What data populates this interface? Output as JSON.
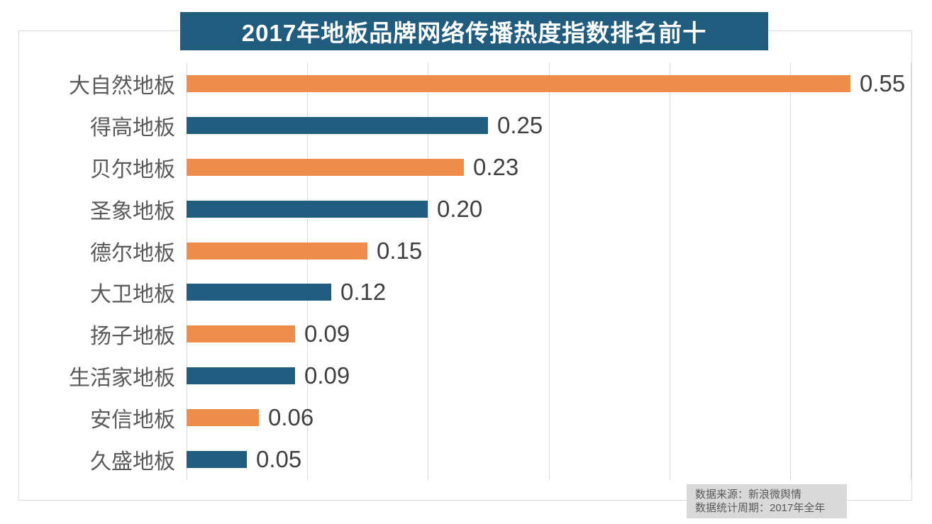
{
  "title": "2017年地板品牌网络传播热度指数排名前十",
  "source_note": {
    "line1": "数据来源：新浪微舆情",
    "line2": "数据统计周期：2017年全年"
  },
  "colors": {
    "title_bg": "#1F5C7D",
    "bar_orange": "#EE8D4A",
    "bar_teal": "#1F5C7D",
    "grid": "#D9D9D9",
    "category_text": "#595959",
    "value_text": "#404040",
    "note_bg": "#D9D9D9",
    "note_text": "#595959"
  },
  "chart_data": {
    "type": "bar",
    "orientation": "horizontal",
    "title": "2017年地板品牌网络传播热度指数排名前十",
    "categories": [
      "大自然地板",
      "得高地板",
      "贝尔地板",
      "圣象地板",
      "德尔地板",
      "大卫地板",
      "扬子地板",
      "生活家地板",
      "安信地板",
      "久盛地板"
    ],
    "values": [
      0.55,
      0.25,
      0.23,
      0.2,
      0.15,
      0.12,
      0.09,
      0.09,
      0.06,
      0.05
    ],
    "value_labels": [
      "0.55",
      "0.25",
      "0.23",
      "0.20",
      "0.15",
      "0.12",
      "0.09",
      "0.09",
      "0.06",
      "0.05"
    ],
    "bar_color_pattern": [
      "#EE8D4A",
      "#1F5C7D"
    ],
    "xlabel": "",
    "ylabel": "",
    "xlim": [
      0,
      0.6
    ],
    "grid_interval": 0.1,
    "grid": "on",
    "legend": "none",
    "data_labels": "outside-end"
  }
}
